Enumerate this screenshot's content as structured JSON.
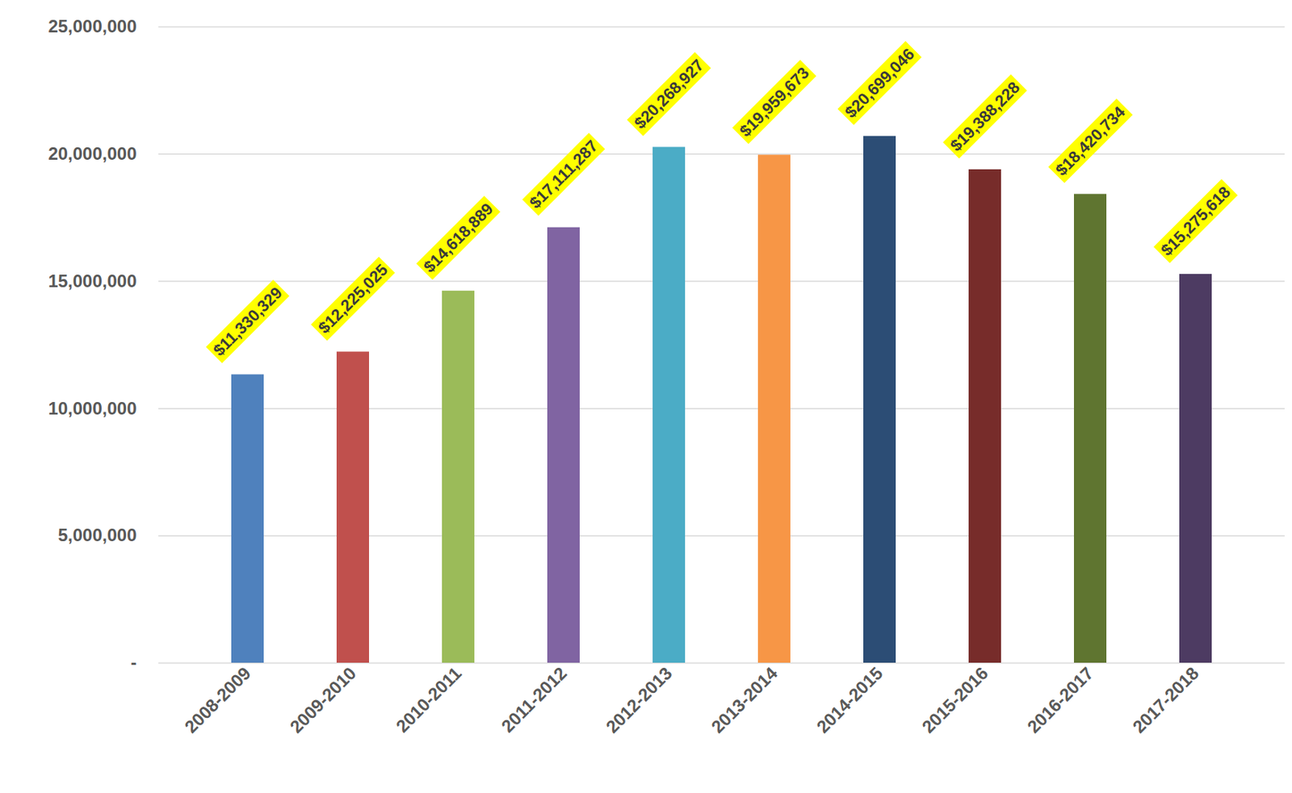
{
  "chart_data": {
    "type": "bar",
    "categories": [
      "2008-2009",
      "2009-2010",
      "2010-2011",
      "2011-2012",
      "2012-2013",
      "2013-2014",
      "2014-2015",
      "2015-2016",
      "2016-2017",
      "2017-2018"
    ],
    "values": [
      11330329,
      12225025,
      14618889,
      17111287,
      20268927,
      19959673,
      20699046,
      19388228,
      18420734,
      15275618
    ],
    "value_labels": [
      "$11,330,329",
      "$12,225,025",
      "$14,618,889",
      "$17,111,287",
      "$20,268,927",
      "$19,959,673",
      "$20,699,046",
      "$19,388,228",
      "$18,420,734",
      "$15,275,618"
    ],
    "colors": [
      "#4f81bd",
      "#c0504d",
      "#9bbb59",
      "#8064a2",
      "#4bacc6",
      "#f79646",
      "#2c4d75",
      "#772c2a",
      "#5f7530",
      "#4d3b62"
    ],
    "ylim": [
      0,
      25000000
    ],
    "yticks": [
      {
        "value": 0,
        "label": "-"
      },
      {
        "value": 5000000,
        "label": "5,000,000"
      },
      {
        "value": 10000000,
        "label": "10,000,000"
      },
      {
        "value": 15000000,
        "label": "15,000,000"
      },
      {
        "value": 20000000,
        "label": "20,000,000"
      },
      {
        "value": 25000000,
        "label": "25,000,000"
      }
    ],
    "grid": true,
    "data_labels": true
  }
}
